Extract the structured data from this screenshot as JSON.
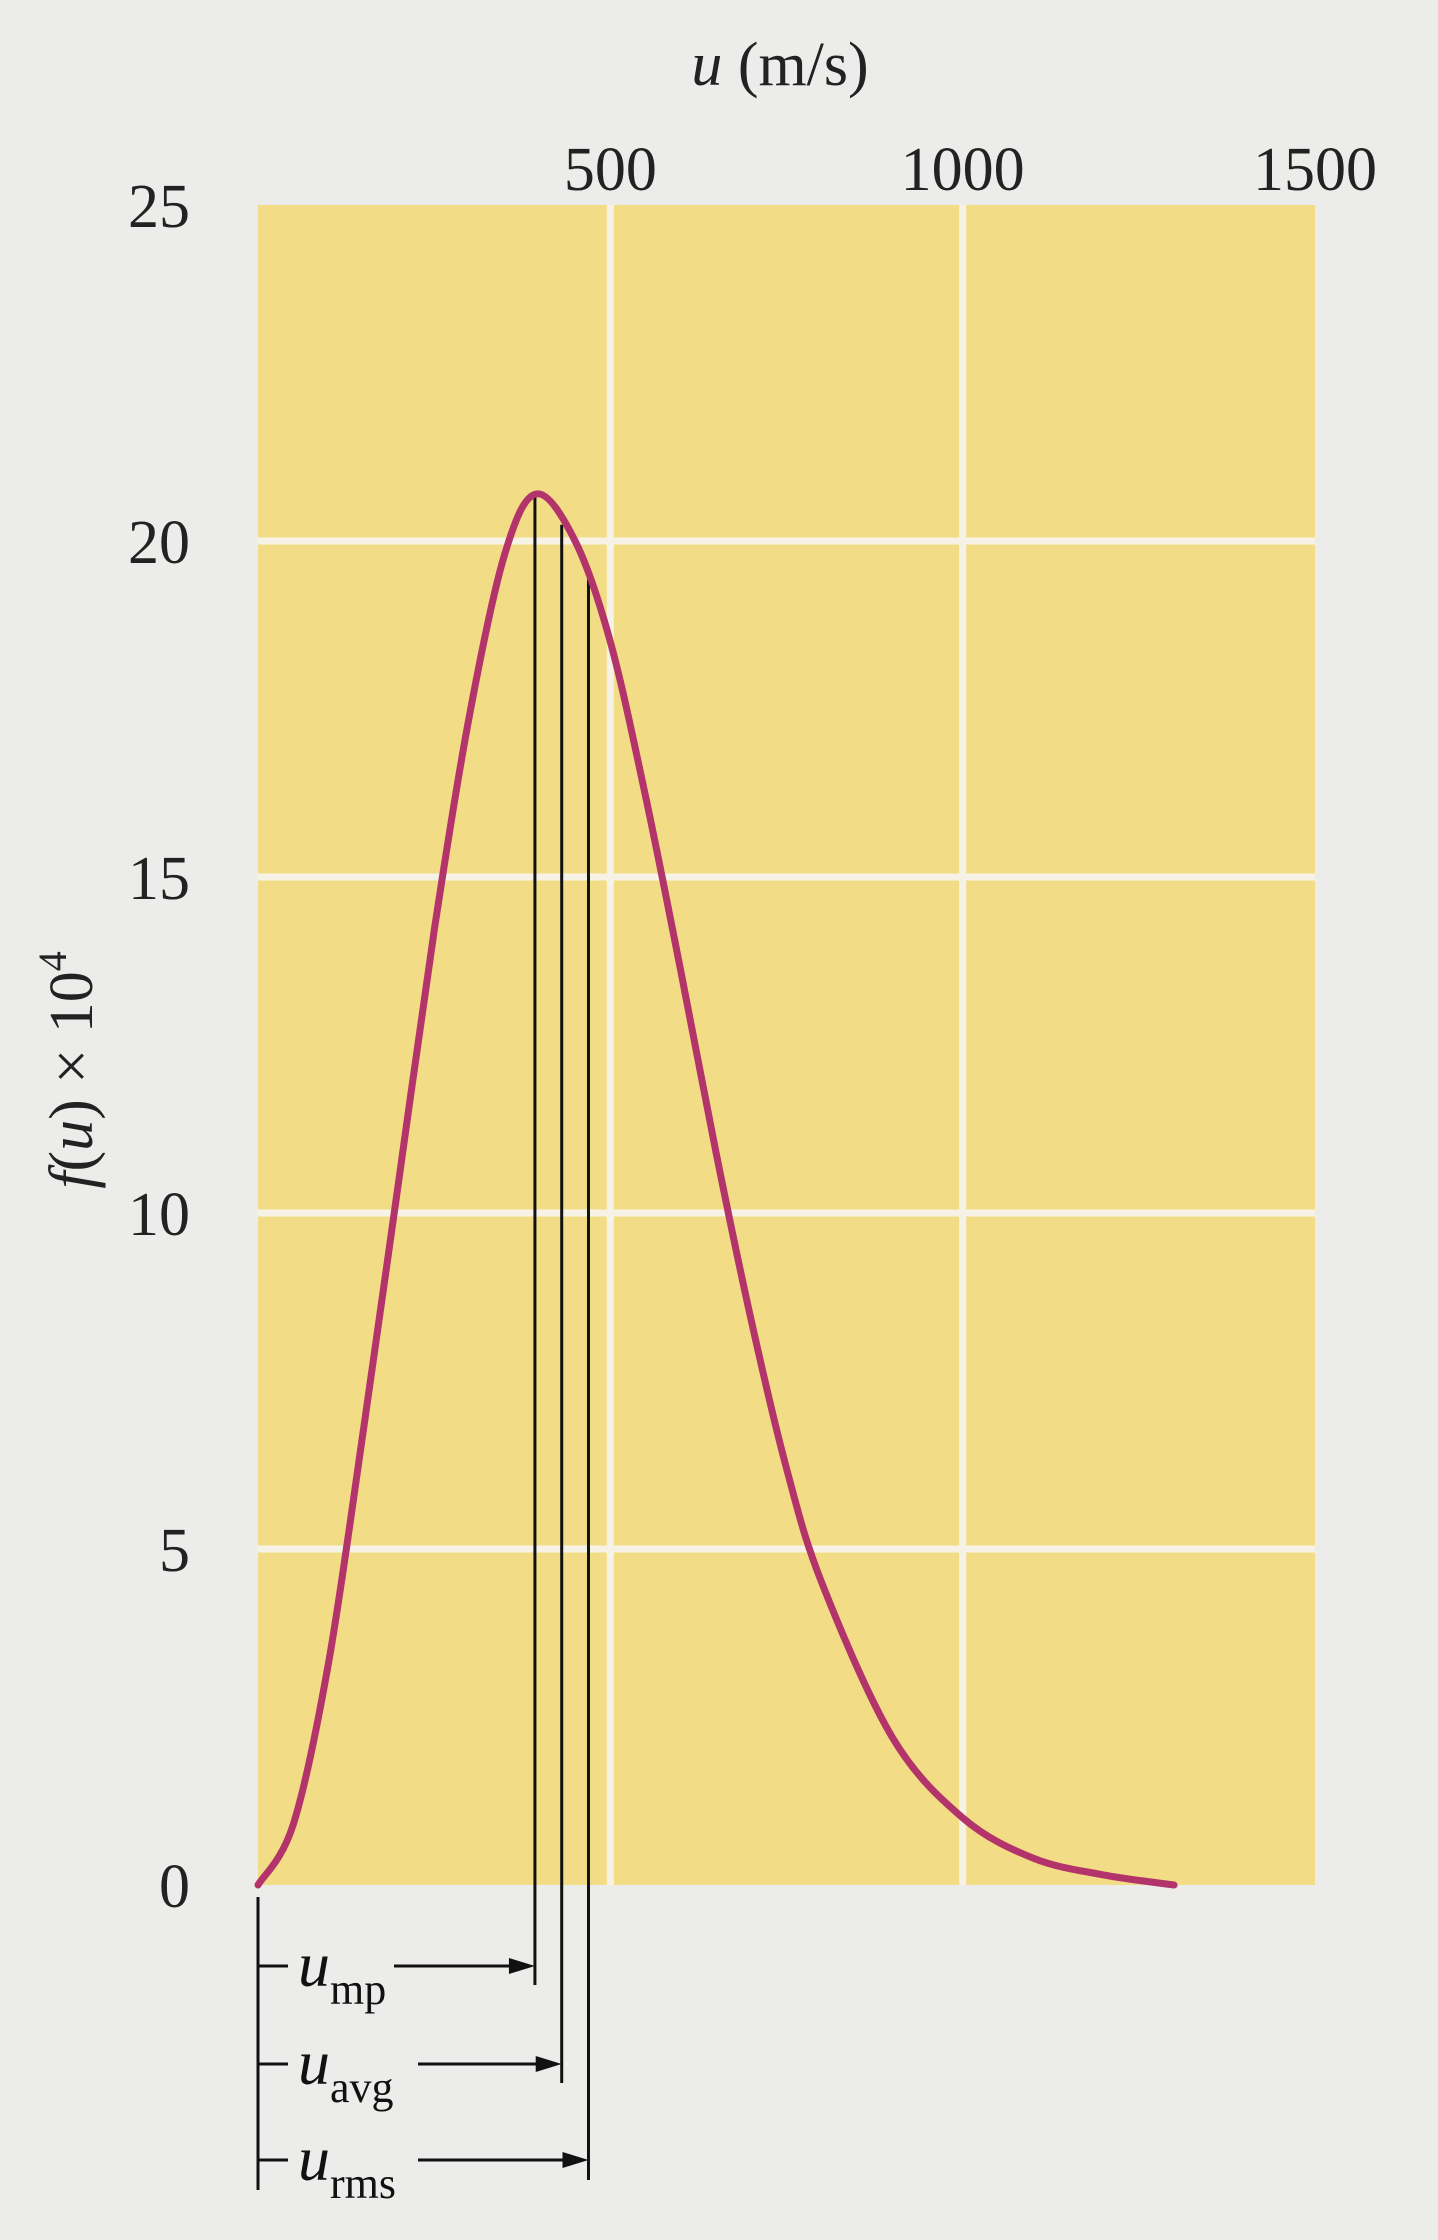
{
  "chart_data": {
    "type": "line",
    "xlabel": {
      "var": "u",
      "unit": " (m/s)"
    },
    "ylabel": {
      "fn": "f",
      "var": "u",
      "suffix": " × 10",
      "exp": "4"
    },
    "xlim": [
      0,
      1500
    ],
    "ylim": [
      0,
      25
    ],
    "x_ticks": [
      "500",
      "1000",
      "1500"
    ],
    "x_tick_values": [
      500,
      1000,
      1500
    ],
    "y_ticks": [
      "0",
      "5",
      "10",
      "15",
      "20",
      "25"
    ],
    "y_tick_values": [
      0,
      5,
      10,
      15,
      20,
      25
    ],
    "x_axis_position": "top",
    "grid": true,
    "colors": {
      "plot_bg": "#f2dc86",
      "grid": "#f6f3e6",
      "curve": "#b3336b",
      "marker_line": "#111111"
    },
    "series": [
      {
        "x": [
          0,
          50,
          100,
          150,
          200,
          250,
          300,
          350,
          395,
          450,
          500,
          550,
          600,
          650,
          700,
          750,
          800,
          900,
          1000,
          1100,
          1200,
          1300
        ],
        "y": [
          0,
          0.9,
          3.3,
          6.8,
          10.5,
          14.2,
          17.4,
          19.8,
          20.7,
          20.0,
          18.5,
          16.2,
          13.6,
          10.9,
          8.4,
          6.2,
          4.5,
          2.2,
          1.0,
          0.4,
          0.15,
          0.0
        ]
      }
    ],
    "markers": [
      {
        "symbol": "u",
        "sub": "mp",
        "x": 393
      },
      {
        "symbol": "u",
        "sub": "avg",
        "x": 431
      },
      {
        "symbol": "u",
        "sub": "rms",
        "x": 469
      }
    ]
  }
}
